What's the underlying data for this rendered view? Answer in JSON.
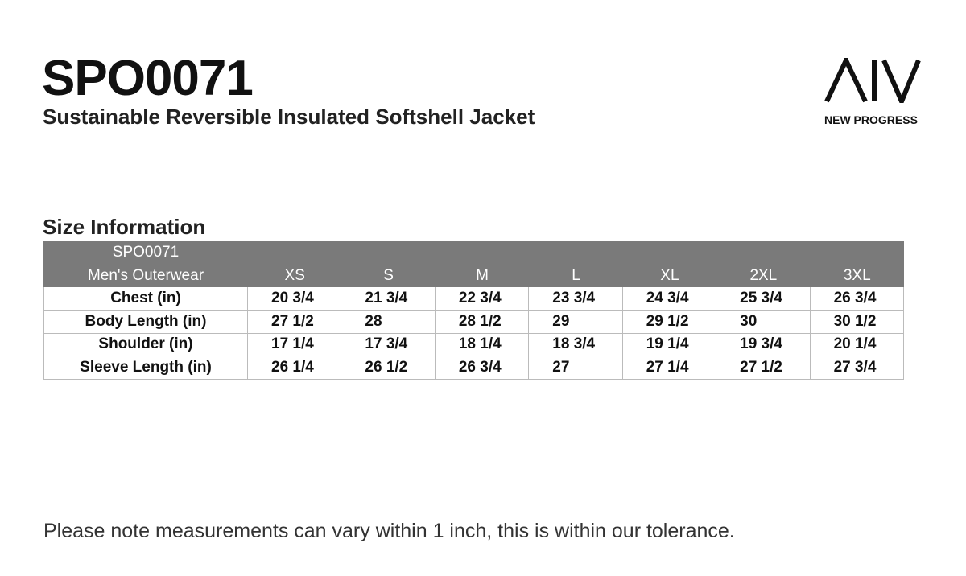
{
  "header": {
    "code": "SPO0071",
    "title": "Sustainable Reversible Insulated Softshell Jacket"
  },
  "logo": {
    "brand": "NEW PROGRESS"
  },
  "section_title": "Size Information",
  "table": {
    "header": {
      "label_lines": [
        "SPO0071",
        "Men's Outerwear"
      ],
      "sizes": [
        "XS",
        "S",
        "M",
        "L",
        "XL",
        "2XL",
        "3XL"
      ]
    },
    "rows": [
      {
        "label": "Chest (in)",
        "values": [
          "20 3/4",
          "21 3/4",
          "22 3/4",
          "23 3/4",
          "24 3/4",
          "25 3/4",
          "26 3/4"
        ]
      },
      {
        "label": "Body Length (in)",
        "values": [
          "27 1/2",
          "28",
          "28 1/2",
          "29",
          "29 1/2",
          "30",
          "30 1/2"
        ]
      },
      {
        "label": "Shoulder (in)",
        "values": [
          "17 1/4",
          "17 3/4",
          "18 1/4",
          "18 3/4",
          "19 1/4",
          "19 3/4",
          "20 1/4"
        ]
      },
      {
        "label": "Sleeve Length (in)",
        "values": [
          "26 1/4",
          "26 1/2",
          "26 3/4",
          "27",
          "27 1/4",
          "27 1/2",
          "27 3/4"
        ]
      }
    ]
  },
  "note": "Please note measurements can vary within 1 inch, this is within our tolerance."
}
